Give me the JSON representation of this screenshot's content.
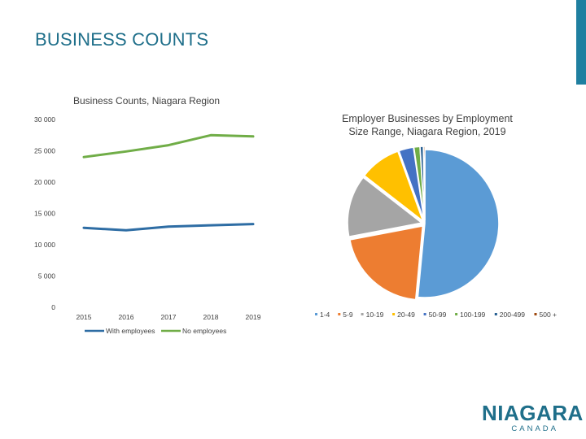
{
  "slide": {
    "title": "BUSINESS COUNTS",
    "accent_color": "#1f7fa0"
  },
  "logo": {
    "word": "NIAGARA",
    "sub": "CANADA"
  },
  "chart_data": [
    {
      "type": "line",
      "title": "Business Counts, Niagara Region",
      "x": [
        "2015",
        "2016",
        "2017",
        "2018",
        "2019"
      ],
      "y_ticks": [
        "30 000",
        "25 000",
        "20 000",
        "15 000",
        "10 000",
        "5 000",
        "0"
      ],
      "ylim": [
        0,
        30000
      ],
      "legend_position": "bottom",
      "grid": false,
      "series": [
        {
          "name": "With employees",
          "color": "#2e6da4",
          "values": [
            12700,
            12300,
            12900,
            13100,
            13300
          ]
        },
        {
          "name": "No employees",
          "color": "#70ad47",
          "values": [
            24000,
            24900,
            25900,
            27500,
            27300
          ]
        }
      ]
    },
    {
      "type": "pie",
      "title_lines": [
        "Employer Businesses by Employment",
        "Size Range, Niagara Region, 2019"
      ],
      "legend_position": "bottom",
      "slices": [
        {
          "label": "1-4",
          "value": 51.5,
          "color": "#5b9bd5"
        },
        {
          "label": "5-9",
          "value": 20.5,
          "color": "#ed7d31"
        },
        {
          "label": "10-19",
          "value": 13.5,
          "color": "#a5a5a5"
        },
        {
          "label": "20-49",
          "value": 9.0,
          "color": "#ffc000"
        },
        {
          "label": "50-99",
          "value": 3.2,
          "color": "#4472c4"
        },
        {
          "label": "100-199",
          "value": 1.3,
          "color": "#70ad47"
        },
        {
          "label": "200-499",
          "value": 0.7,
          "color": "#255e91"
        },
        {
          "label": "500 +",
          "value": 0.3,
          "color": "#9e480e"
        }
      ]
    }
  ]
}
